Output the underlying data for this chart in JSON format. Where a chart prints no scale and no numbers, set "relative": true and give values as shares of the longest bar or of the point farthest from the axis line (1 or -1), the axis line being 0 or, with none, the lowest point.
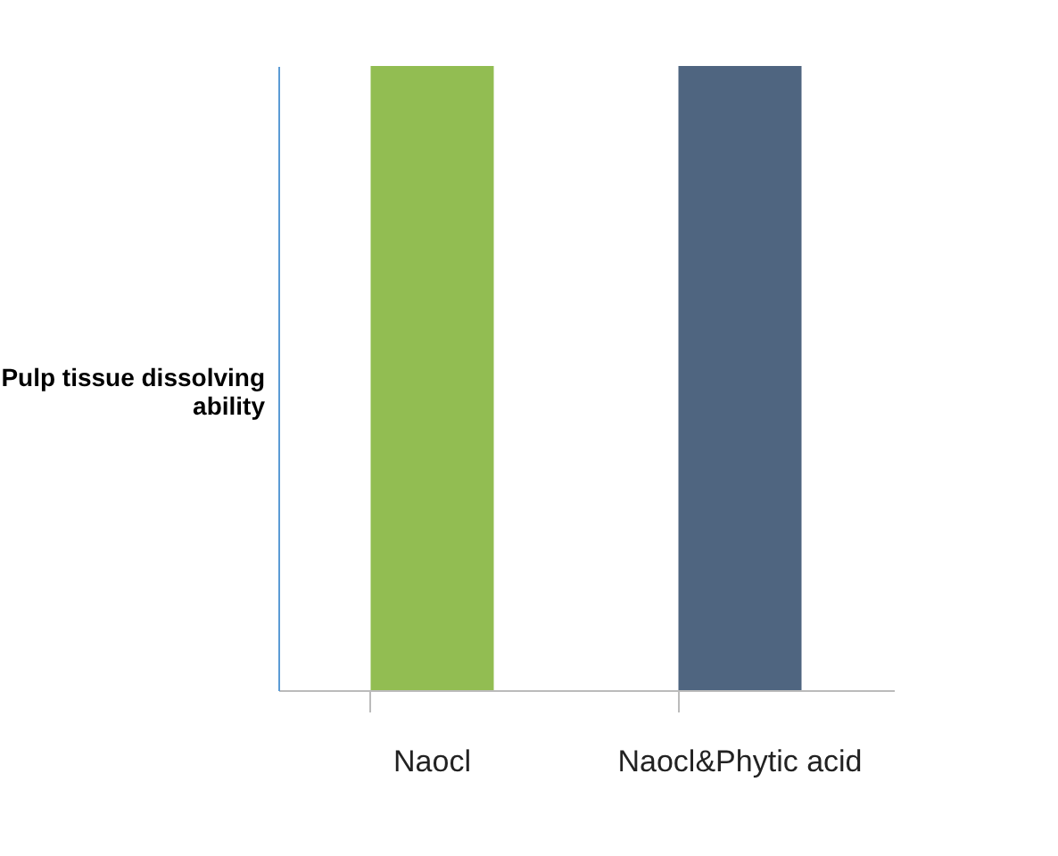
{
  "chart_data": {
    "type": "bar",
    "relative": true,
    "ylabel": "Pulp tissue dissolving ability",
    "categories": [
      "Naocl",
      "Naocl&Phytic acid"
    ],
    "values": [
      1,
      1
    ],
    "colors": [
      "#92bd52",
      "#4f6580"
    ]
  }
}
